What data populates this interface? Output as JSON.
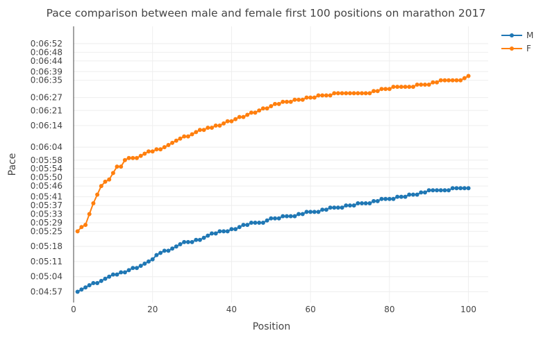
{
  "chart_data": {
    "type": "line",
    "title": "Pace comparison between male and female first 100 positions on marathon 2017",
    "xlabel": "Position",
    "ylabel": "Pace",
    "xlim": [
      0,
      105
    ],
    "ylim": [
      292,
      420
    ],
    "x_ticks": [
      0,
      20,
      40,
      60,
      80,
      100
    ],
    "y_ticks": [
      {
        "value": 297,
        "label": "0:04:57"
      },
      {
        "value": 304,
        "label": "0:05:04"
      },
      {
        "value": 311,
        "label": "0:05:11"
      },
      {
        "value": 318,
        "label": "0:05:18"
      },
      {
        "value": 325,
        "label": "0:05:25"
      },
      {
        "value": 329,
        "label": "0:05:29"
      },
      {
        "value": 333,
        "label": "0:05:33"
      },
      {
        "value": 337,
        "label": "0:05:37"
      },
      {
        "value": 341,
        "label": "0:05:41"
      },
      {
        "value": 346,
        "label": "0:05:46"
      },
      {
        "value": 350,
        "label": "0:05:50"
      },
      {
        "value": 354,
        "label": "0:05:54"
      },
      {
        "value": 358,
        "label": "0:05:58"
      },
      {
        "value": 364,
        "label": "0:06:04"
      },
      {
        "value": 374,
        "label": "0:06:14"
      },
      {
        "value": 381,
        "label": "0:06:21"
      },
      {
        "value": 387,
        "label": "0:06:27"
      },
      {
        "value": 395,
        "label": "0:06:35"
      },
      {
        "value": 399,
        "label": "0:06:39"
      },
      {
        "value": 404,
        "label": "0:06:44"
      },
      {
        "value": 408,
        "label": "0:06:48"
      },
      {
        "value": 412,
        "label": "0:06:52"
      }
    ],
    "grid": true,
    "legend_position": "top-right",
    "x": [
      1,
      2,
      3,
      4,
      5,
      6,
      7,
      8,
      9,
      10,
      11,
      12,
      13,
      14,
      15,
      16,
      17,
      18,
      19,
      20,
      21,
      22,
      23,
      24,
      25,
      26,
      27,
      28,
      29,
      30,
      31,
      32,
      33,
      34,
      35,
      36,
      37,
      38,
      39,
      40,
      41,
      42,
      43,
      44,
      45,
      46,
      47,
      48,
      49,
      50,
      51,
      52,
      53,
      54,
      55,
      56,
      57,
      58,
      59,
      60,
      61,
      62,
      63,
      64,
      65,
      66,
      67,
      68,
      69,
      70,
      71,
      72,
      73,
      74,
      75,
      76,
      77,
      78,
      79,
      80,
      81,
      82,
      83,
      84,
      85,
      86,
      87,
      88,
      89,
      90,
      91,
      92,
      93,
      94,
      95,
      96,
      97,
      98,
      99,
      100
    ],
    "series": [
      {
        "name": "M",
        "color": "#1f77b4",
        "values": [
          297,
          298,
          299,
          300,
          301,
          301,
          302,
          303,
          304,
          305,
          305,
          306,
          306,
          307,
          308,
          308,
          309,
          310,
          311,
          312,
          314,
          315,
          316,
          316,
          317,
          318,
          319,
          320,
          320,
          320,
          321,
          321,
          322,
          323,
          324,
          324,
          325,
          325,
          325,
          326,
          326,
          327,
          328,
          328,
          329,
          329,
          329,
          329,
          330,
          331,
          331,
          331,
          332,
          332,
          332,
          332,
          333,
          333,
          334,
          334,
          334,
          334,
          335,
          335,
          336,
          336,
          336,
          336,
          337,
          337,
          337,
          338,
          338,
          338,
          338,
          339,
          339,
          340,
          340,
          340,
          340,
          341,
          341,
          341,
          342,
          342,
          342,
          343,
          343,
          344,
          344,
          344,
          344,
          344,
          344,
          345,
          345,
          345,
          345,
          345
        ]
      },
      {
        "name": "F",
        "color": "#ff7f0e",
        "values": [
          325,
          327,
          328,
          333,
          338,
          342,
          346,
          348,
          349,
          352,
          355,
          355,
          358,
          359,
          359,
          359,
          360,
          361,
          362,
          362,
          363,
          363,
          364,
          365,
          366,
          367,
          368,
          369,
          369,
          370,
          371,
          372,
          372,
          373,
          373,
          374,
          374,
          375,
          376,
          376,
          377,
          378,
          378,
          379,
          380,
          380,
          381,
          382,
          382,
          383,
          384,
          384,
          385,
          385,
          385,
          386,
          386,
          386,
          387,
          387,
          387,
          388,
          388,
          388,
          388,
          389,
          389,
          389,
          389,
          389,
          389,
          389,
          389,
          389,
          389,
          390,
          390,
          391,
          391,
          391,
          392,
          392,
          392,
          392,
          392,
          392,
          393,
          393,
          393,
          393,
          394,
          394,
          395,
          395,
          395,
          395,
          395,
          395,
          396,
          397
        ]
      }
    ]
  }
}
